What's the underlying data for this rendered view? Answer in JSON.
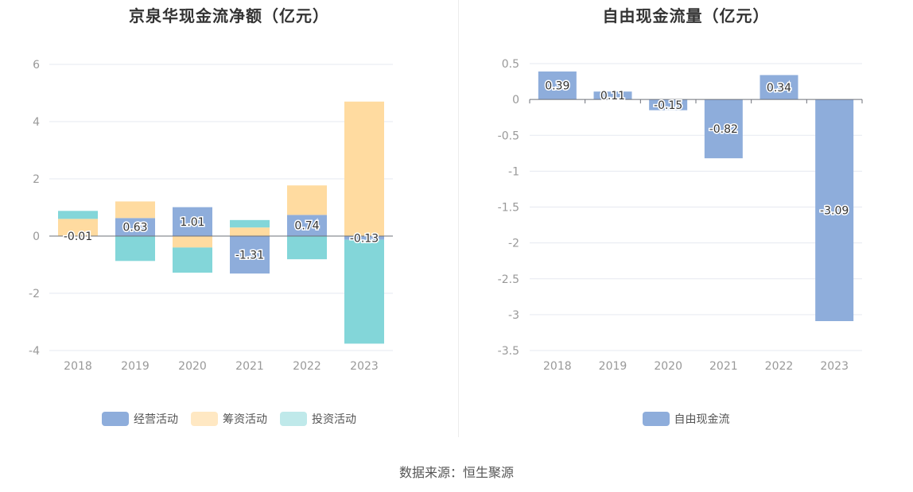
{
  "source_text": "数据来源：恒生聚源",
  "colors": {
    "operating": "#8eaddb",
    "financing": "#ffdba0",
    "investing": "#83d6d9",
    "free_cf": "#8eaddb"
  },
  "chart_data": [
    {
      "type": "bar",
      "stacked": true,
      "title": "京泉华现金流净额（亿元）",
      "categories": [
        "2018",
        "2019",
        "2020",
        "2021",
        "2022",
        "2023"
      ],
      "ylim": [
        -4,
        6
      ],
      "yticks": [
        "6",
        "4",
        "2",
        "0",
        "-2",
        "-4"
      ],
      "grid": true,
      "legend_position": "bottom",
      "series": [
        {
          "name": "经营活动",
          "values": [
            -0.01,
            0.63,
            1.01,
            -1.31,
            0.74,
            -0.13
          ]
        },
        {
          "name": "筹资活动",
          "values": [
            0.6,
            0.58,
            -0.4,
            0.3,
            1.03,
            4.7
          ]
        },
        {
          "name": "投资活动",
          "values": [
            0.28,
            -0.87,
            -0.88,
            0.26,
            -0.81,
            -3.63
          ]
        }
      ],
      "data_labels": [
        "-0.01",
        "0.63",
        "1.01",
        "-1.31",
        "0.74",
        "-0.13"
      ]
    },
    {
      "type": "bar",
      "title": "自由现金流量（亿元）",
      "categories": [
        "2018",
        "2019",
        "2020",
        "2021",
        "2022",
        "2023"
      ],
      "ylim": [
        -3.5,
        0.5
      ],
      "yticks": [
        "0.5",
        "0",
        "-0.5",
        "-1",
        "-1.5",
        "-2",
        "-2.5",
        "-3",
        "-3.5"
      ],
      "grid": true,
      "legend_position": "bottom",
      "series": [
        {
          "name": "自由现金流",
          "values": [
            0.39,
            0.11,
            -0.15,
            -0.82,
            0.34,
            -3.09
          ]
        }
      ],
      "data_labels": [
        "0.39",
        "0.11",
        "-0.15",
        "-0.82",
        "0.34",
        "-3.09"
      ]
    }
  ]
}
